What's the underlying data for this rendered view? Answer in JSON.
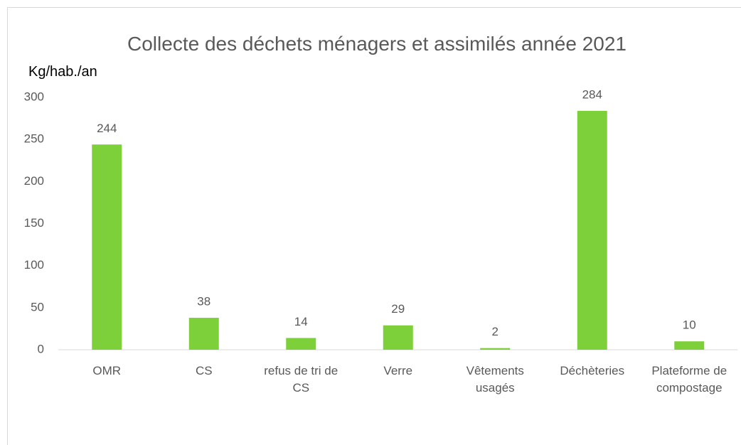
{
  "chart_data": {
    "type": "bar",
    "title": "Collecte des déchets ménagers et assimilés année 2021",
    "y_label": "Kg/hab./an",
    "categories": [
      "OMR",
      "CS",
      "refus de tri de CS",
      "Verre",
      "Vêtements usagés",
      "Déchèteries",
      "Plateforme de compostage"
    ],
    "values": [
      244,
      38,
      14,
      29,
      2,
      284,
      10
    ],
    "color": "#7ed03b",
    "ylim": [
      0,
      300
    ],
    "yticks": [
      0,
      50,
      100,
      150,
      200,
      250,
      300
    ],
    "grid": false
  }
}
